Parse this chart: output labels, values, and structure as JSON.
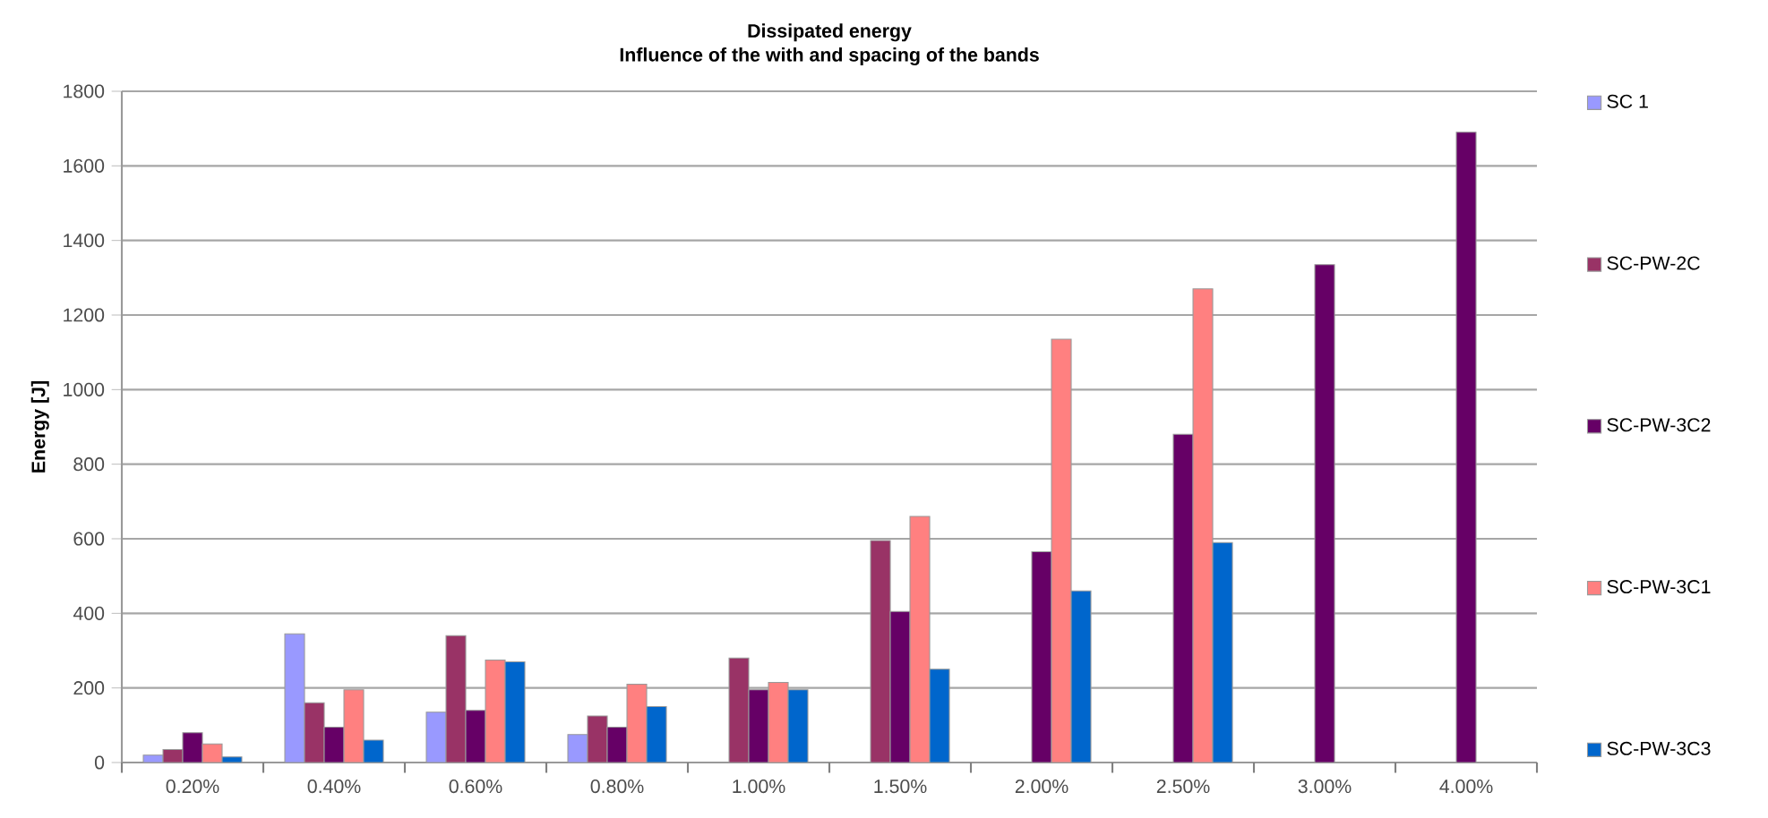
{
  "chart_data": {
    "type": "bar",
    "title": "Dissipated energy",
    "subtitle": "Influence of the with and spacing of the bands",
    "ylabel": "Energy [J]",
    "categories": [
      "0.20%",
      "0.40%",
      "0.60%",
      "0.80%",
      "1.00%",
      "1.50%",
      "2.00%",
      "2.50%",
      "3.00%",
      "4.00%"
    ],
    "series": [
      {
        "name": "SC 1",
        "color": "#9999ff",
        "values": [
          20,
          345,
          135,
          75,
          null,
          null,
          null,
          null,
          null,
          null
        ]
      },
      {
        "name": "SC-PW-2C",
        "color": "#993366",
        "values": [
          35,
          160,
          340,
          125,
          280,
          595,
          null,
          null,
          null,
          null
        ]
      },
      {
        "name": "SC-PW-3C2",
        "color": "#660066",
        "values": [
          80,
          95,
          140,
          95,
          195,
          405,
          565,
          880,
          1335,
          1690
        ]
      },
      {
        "name": "SC-PW-3C1",
        "color": "#ff8080",
        "values": [
          50,
          195,
          275,
          210,
          215,
          660,
          1135,
          1270,
          null,
          null
        ]
      },
      {
        "name": "SC-PW-3C3",
        "color": "#0066cc",
        "values": [
          15,
          60,
          270,
          150,
          195,
          250,
          460,
          590,
          null,
          null
        ]
      }
    ],
    "ylim": [
      0,
      1800
    ],
    "yticks": [
      0,
      200,
      400,
      600,
      800,
      1000,
      1200,
      1400,
      1600,
      1800
    ],
    "grid": "y",
    "legend": "right"
  }
}
